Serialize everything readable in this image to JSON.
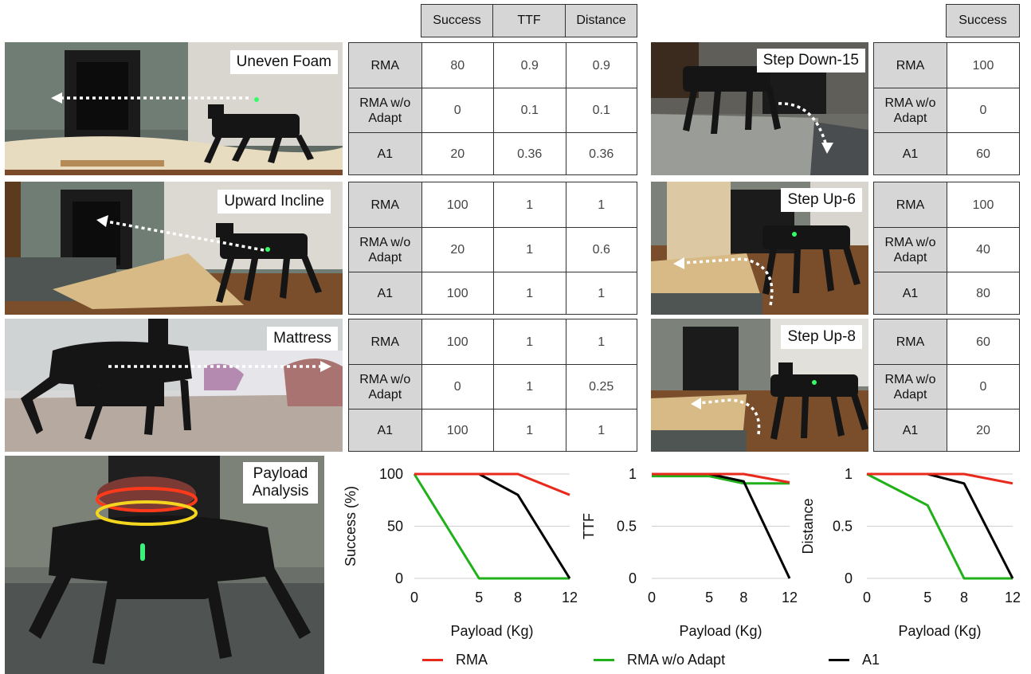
{
  "header": {
    "left_columns": [
      "Success",
      "TTF",
      "Distance"
    ],
    "right_columns": [
      "Success"
    ]
  },
  "terrains_left": [
    {
      "name": "Uneven Foam",
      "rows": [
        {
          "label": "RMA",
          "values": [
            "80",
            "0.9",
            "0.9"
          ]
        },
        {
          "label": "RMA w/o Adapt",
          "values": [
            "0",
            "0.1",
            "0.1"
          ]
        },
        {
          "label": "A1",
          "values": [
            "20",
            "0.36",
            "0.36"
          ]
        }
      ]
    },
    {
      "name": "Upward Incline",
      "rows": [
        {
          "label": "RMA",
          "values": [
            "100",
            "1",
            "1"
          ]
        },
        {
          "label": "RMA w/o Adapt",
          "values": [
            "20",
            "1",
            "0.6"
          ]
        },
        {
          "label": "A1",
          "values": [
            "100",
            "1",
            "1"
          ]
        }
      ]
    },
    {
      "name": "Mattress",
      "rows": [
        {
          "label": "RMA",
          "values": [
            "100",
            "1",
            "1"
          ]
        },
        {
          "label": "RMA w/o Adapt",
          "values": [
            "0",
            "1",
            "0.25"
          ]
        },
        {
          "label": "A1",
          "values": [
            "100",
            "1",
            "1"
          ]
        }
      ]
    }
  ],
  "terrains_right": [
    {
      "name": "Step Down-15",
      "rows": [
        {
          "label": "RMA",
          "values": [
            "100"
          ]
        },
        {
          "label": "RMA w/o Adapt",
          "values": [
            "0"
          ]
        },
        {
          "label": "A1",
          "values": [
            "60"
          ]
        }
      ]
    },
    {
      "name": "Step Up-6",
      "rows": [
        {
          "label": "RMA",
          "values": [
            "100"
          ]
        },
        {
          "label": "RMA w/o Adapt",
          "values": [
            "40"
          ]
        },
        {
          "label": "A1",
          "values": [
            "80"
          ]
        }
      ]
    },
    {
      "name": "Step Up-8",
      "rows": [
        {
          "label": "RMA",
          "values": [
            "60"
          ]
        },
        {
          "label": "RMA w/o Adapt",
          "values": [
            "0"
          ]
        },
        {
          "label": "A1",
          "values": [
            "20"
          ]
        }
      ]
    }
  ],
  "payload_panel": {
    "label": "Payload Analysis"
  },
  "colors": {
    "RMA": "#e8291c",
    "RMA w/o Adapt": "#1fb01a",
    "A1": "#000000"
  },
  "legend": [
    {
      "name": "RMA",
      "color": "#e8291c"
    },
    {
      "name": "RMA w/o Adapt",
      "color": "#1fb01a"
    },
    {
      "name": "A1",
      "color": "#000000"
    }
  ],
  "chart_data": [
    {
      "type": "line",
      "xlabel": "Payload (Kg)",
      "ylabel": "Success (%)",
      "x": [
        0,
        5,
        8,
        12
      ],
      "xticks": [
        "0",
        "5",
        "8",
        "12"
      ],
      "yticks": [
        {
          "v": 0,
          "t": "0"
        },
        {
          "v": 50,
          "t": "50"
        },
        {
          "v": 100,
          "t": "100"
        }
      ],
      "ylim": [
        0,
        100
      ],
      "series": [
        {
          "name": "RMA",
          "values": [
            100,
            100,
            100,
            80
          ]
        },
        {
          "name": "RMA w/o Adapt",
          "values": [
            100,
            0,
            0,
            0
          ]
        },
        {
          "name": "A1",
          "values": [
            100,
            100,
            80,
            0
          ]
        }
      ]
    },
    {
      "type": "line",
      "xlabel": "Payload (Kg)",
      "ylabel": "TTF",
      "x": [
        0,
        5,
        8,
        12
      ],
      "xticks": [
        "0",
        "5",
        "8",
        "12"
      ],
      "yticks": [
        {
          "v": 0,
          "t": "0"
        },
        {
          "v": 0.5,
          "t": "0.5"
        },
        {
          "v": 1,
          "t": "1"
        }
      ],
      "ylim": [
        0,
        1
      ],
      "series": [
        {
          "name": "RMA",
          "values": [
            1,
            1,
            1,
            0.92
          ]
        },
        {
          "name": "RMA w/o Adapt",
          "values": [
            0.98,
            0.98,
            0.91,
            0.91
          ]
        },
        {
          "name": "A1",
          "values": [
            1,
            1,
            0.93,
            0
          ]
        }
      ]
    },
    {
      "type": "line",
      "xlabel": "Payload (Kg)",
      "ylabel": "Distance",
      "x": [
        0,
        5,
        8,
        12
      ],
      "xticks": [
        "0",
        "5",
        "8",
        "12"
      ],
      "yticks": [
        {
          "v": 0,
          "t": "0"
        },
        {
          "v": 0.5,
          "t": "0.5"
        },
        {
          "v": 1,
          "t": "1"
        }
      ],
      "ylim": [
        0,
        1
      ],
      "series": [
        {
          "name": "RMA",
          "values": [
            1,
            1,
            1,
            0.91
          ]
        },
        {
          "name": "RMA w/o Adapt",
          "values": [
            1,
            0.7,
            0,
            0
          ]
        },
        {
          "name": "A1",
          "values": [
            1,
            1,
            0.91,
            0
          ]
        }
      ]
    }
  ]
}
